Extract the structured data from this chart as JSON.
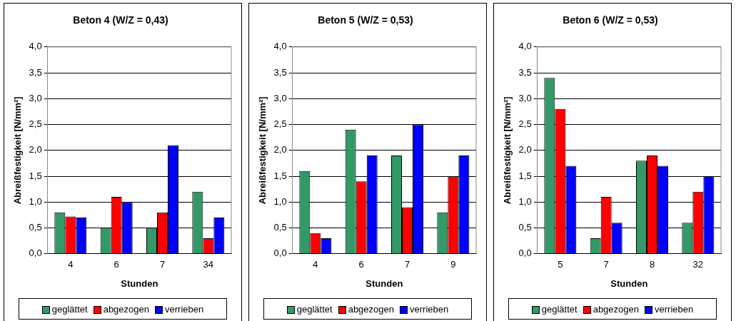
{
  "chart_data": [
    {
      "type": "bar",
      "title": "Beton 4 (W/Z = 0,43)",
      "xlabel": "Stunden",
      "ylabel": "Abreißfestigkeit [N/mm²]",
      "categories": [
        "4",
        "6",
        "7",
        "34"
      ],
      "series": [
        {
          "name": "geglättet",
          "color": "#339966",
          "values": [
            0.8,
            0.5,
            0.5,
            1.2
          ]
        },
        {
          "name": "abgezogen",
          "color": "#ff0000",
          "values": [
            0.72,
            1.1,
            0.8,
            0.3
          ]
        },
        {
          "name": "verrieben",
          "color": "#0000ff",
          "values": [
            0.7,
            1.0,
            2.1,
            0.7
          ]
        }
      ],
      "ylim": [
        0,
        4
      ],
      "yticks": [
        {
          "value": 0,
          "label": "0,0"
        },
        {
          "value": 0.5,
          "label": "0,5"
        },
        {
          "value": 1,
          "label": "1,0"
        },
        {
          "value": 1.5,
          "label": "1,5"
        },
        {
          "value": 2,
          "label": "2,0"
        },
        {
          "value": 2.5,
          "label": "2,5"
        },
        {
          "value": 3,
          "label": "3,0"
        },
        {
          "value": 3.5,
          "label": "3,5"
        },
        {
          "value": 4,
          "label": "4,0"
        }
      ],
      "grid": "y",
      "legend": "bottom"
    },
    {
      "type": "bar",
      "title": "Beton 5 (W/Z = 0,53)",
      "xlabel": "Stunden",
      "ylabel": "Abreißfestigkeit [N/mm²]",
      "categories": [
        "4",
        "6",
        "7",
        "9"
      ],
      "series": [
        {
          "name": "geglättet",
          "color": "#339966",
          "values": [
            1.6,
            2.4,
            1.9,
            0.8
          ]
        },
        {
          "name": "abgezogen",
          "color": "#ff0000",
          "values": [
            0.4,
            1.4,
            0.9,
            1.5
          ]
        },
        {
          "name": "verrieben",
          "color": "#0000ff",
          "values": [
            0.3,
            1.9,
            2.5,
            1.9
          ]
        }
      ],
      "ylim": [
        0,
        4
      ],
      "yticks": [
        {
          "value": 0,
          "label": "0,0"
        },
        {
          "value": 0.5,
          "label": "0,5"
        },
        {
          "value": 1,
          "label": "1,0"
        },
        {
          "value": 1.5,
          "label": "1,5"
        },
        {
          "value": 2,
          "label": "2,0"
        },
        {
          "value": 2.5,
          "label": "2,5"
        },
        {
          "value": 3,
          "label": "3,0"
        },
        {
          "value": 3.5,
          "label": "3,5"
        },
        {
          "value": 4,
          "label": "4,0"
        }
      ],
      "grid": "y",
      "legend": "bottom"
    },
    {
      "type": "bar",
      "title": "Beton 6 (W/Z = 0,53)",
      "xlabel": "Stunden",
      "ylabel": "Abreißfestigkeit [N/mm²]",
      "categories": [
        "5",
        "7",
        "8",
        "32"
      ],
      "series": [
        {
          "name": "geglättet",
          "color": "#339966",
          "values": [
            3.4,
            0.3,
            1.8,
            0.6
          ]
        },
        {
          "name": "abgezogen",
          "color": "#ff0000",
          "values": [
            2.8,
            1.1,
            1.9,
            1.2
          ]
        },
        {
          "name": "verrieben",
          "color": "#0000ff",
          "values": [
            1.7,
            0.6,
            1.7,
            1.5
          ]
        }
      ],
      "ylim": [
        0,
        4
      ],
      "yticks": [
        {
          "value": 0,
          "label": "0,0"
        },
        {
          "value": 0.5,
          "label": "0,5"
        },
        {
          "value": 1,
          "label": "1,0"
        },
        {
          "value": 1.5,
          "label": "1,5"
        },
        {
          "value": 2,
          "label": "2,0"
        },
        {
          "value": 2.5,
          "label": "2,5"
        },
        {
          "value": 3,
          "label": "3,0"
        },
        {
          "value": 3.5,
          "label": "3,5"
        },
        {
          "value": 4,
          "label": "4,0"
        }
      ],
      "grid": "y",
      "legend": "bottom"
    }
  ]
}
